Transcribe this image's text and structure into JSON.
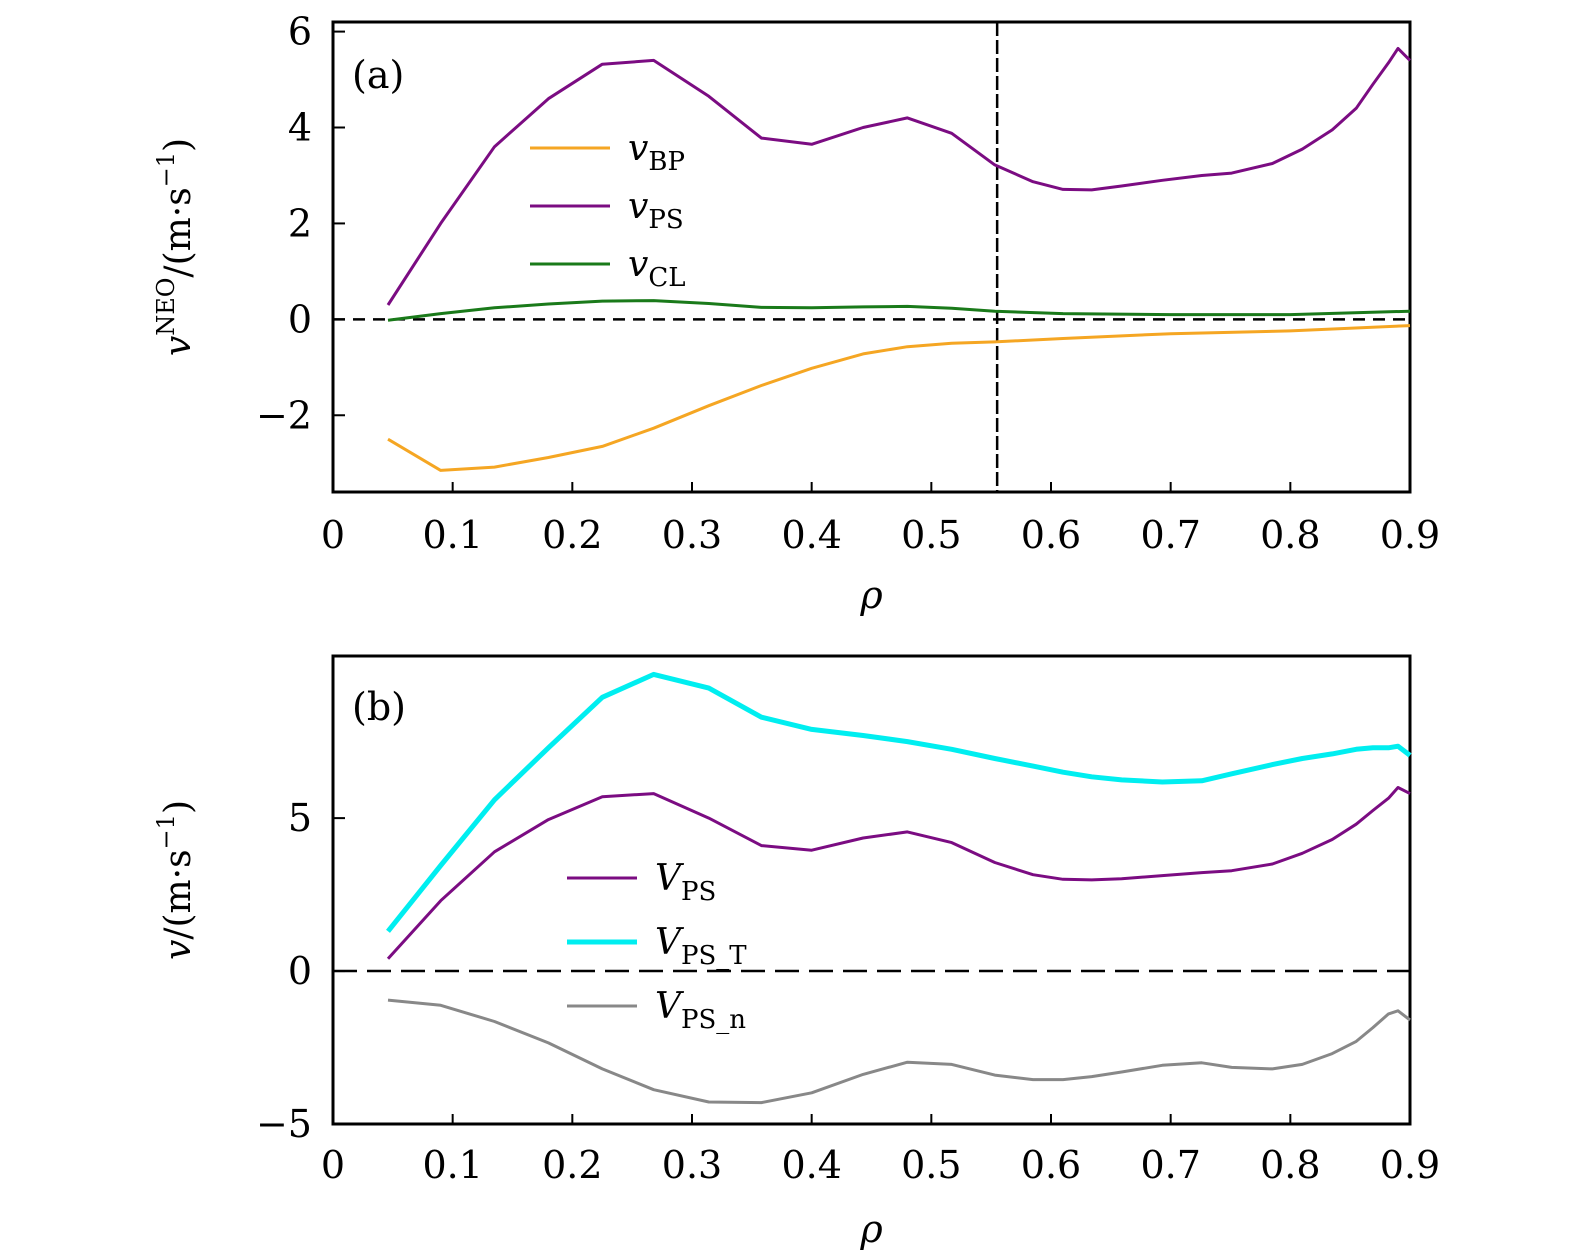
{
  "chart_data": [
    {
      "type": "line",
      "panel_label": "(a)",
      "title": "",
      "xlabel": "ρ",
      "ylabel": "v^NEO/(m·s^-1)",
      "ylabel_parts": {
        "main": "v",
        "sup": "NEO",
        "unit": "/(m·s",
        "unit_sup": "−1",
        "close": ")"
      },
      "xlim": [
        0,
        0.9
      ],
      "ylim": [
        -3.6,
        6.2
      ],
      "xticks": [
        0,
        0.1,
        0.2,
        0.3,
        0.4,
        0.5,
        0.6,
        0.7,
        0.8,
        0.9
      ],
      "xtick_labels": [
        "0",
        "0.1",
        "0.2",
        "0.3",
        "0.4",
        "0.5",
        "0.6",
        "0.7",
        "0.8",
        "0.9"
      ],
      "yticks": [
        -2,
        0,
        2,
        4,
        6
      ],
      "ytick_labels": [
        "−2",
        "0",
        "2",
        "4",
        "6"
      ],
      "grid": false,
      "legend_position": "upper-left-center",
      "reference_lines": [
        {
          "orientation": "horizontal",
          "value": 0,
          "style": "dashed",
          "color": "#000000"
        },
        {
          "orientation": "vertical",
          "value": 0.555,
          "style": "dashed",
          "color": "#000000"
        }
      ],
      "series": [
        {
          "name": "v_BP",
          "label_main": "v",
          "label_sub": "BP",
          "color": "#f5a623",
          "width": 3,
          "x": [
            0.046,
            0.09,
            0.135,
            0.18,
            0.225,
            0.268,
            0.314,
            0.358,
            0.4,
            0.443,
            0.48,
            0.517,
            0.553,
            0.61,
            0.7,
            0.8,
            0.9
          ],
          "y": [
            -2.5,
            -3.15,
            -3.08,
            -2.88,
            -2.65,
            -2.27,
            -1.8,
            -1.38,
            -1.02,
            -0.72,
            -0.57,
            -0.5,
            -0.47,
            -0.4,
            -0.3,
            -0.24,
            -0.13
          ]
        },
        {
          "name": "v_PS",
          "label_main": "v",
          "label_sub": "PS",
          "color": "#7b0c82",
          "width": 3,
          "x": [
            0.046,
            0.09,
            0.135,
            0.18,
            0.225,
            0.268,
            0.314,
            0.358,
            0.4,
            0.443,
            0.48,
            0.517,
            0.553,
            0.585,
            0.61,
            0.634,
            0.659,
            0.693,
            0.726,
            0.751,
            0.785,
            0.81,
            0.835,
            0.855,
            0.869,
            0.882,
            0.89,
            0.9
          ],
          "y": [
            0.3,
            2.0,
            3.6,
            4.6,
            5.32,
            5.4,
            4.65,
            3.78,
            3.65,
            4.0,
            4.2,
            3.88,
            3.22,
            2.87,
            2.71,
            2.7,
            2.78,
            2.9,
            3.0,
            3.05,
            3.25,
            3.55,
            3.95,
            4.4,
            4.9,
            5.35,
            5.65,
            5.4
          ]
        },
        {
          "name": "v_CL",
          "label_main": "v",
          "label_sub": "CL",
          "color": "#1a7a1a",
          "width": 3,
          "x": [
            0.046,
            0.09,
            0.135,
            0.18,
            0.225,
            0.268,
            0.314,
            0.358,
            0.4,
            0.443,
            0.48,
            0.517,
            0.553,
            0.61,
            0.7,
            0.8,
            0.9
          ],
          "y": [
            -0.02,
            0.12,
            0.24,
            0.32,
            0.38,
            0.39,
            0.33,
            0.25,
            0.24,
            0.26,
            0.27,
            0.23,
            0.17,
            0.12,
            0.1,
            0.1,
            0.17
          ]
        }
      ]
    },
    {
      "type": "line",
      "panel_label": "(b)",
      "title": "",
      "xlabel": "ρ",
      "ylabel": "v/(m·s^-1)",
      "ylabel_parts": {
        "main": "v",
        "sup": "",
        "unit": "/(m·s",
        "unit_sup": "−1",
        "close": ")"
      },
      "xlim": [
        0,
        0.9
      ],
      "ylim": [
        -5,
        10.3
      ],
      "xticks": [
        0,
        0.1,
        0.2,
        0.3,
        0.4,
        0.5,
        0.6,
        0.7,
        0.8,
        0.9
      ],
      "xtick_labels": [
        "0",
        "0.1",
        "0.2",
        "0.3",
        "0.4",
        "0.5",
        "0.6",
        "0.7",
        "0.8",
        "0.9"
      ],
      "yticks": [
        -5,
        0,
        5
      ],
      "ytick_labels": [
        "−5",
        "0",
        "5"
      ],
      "grid": false,
      "legend_position": "center-left",
      "reference_lines": [
        {
          "orientation": "horizontal",
          "value": 0,
          "style": "dashed",
          "color": "#000000"
        }
      ],
      "series": [
        {
          "name": "V_PS",
          "label_main": "V",
          "label_sub": "PS",
          "color": "#7b0c82",
          "width": 3,
          "x": [
            0.046,
            0.09,
            0.135,
            0.18,
            0.225,
            0.268,
            0.314,
            0.358,
            0.4,
            0.443,
            0.48,
            0.517,
            0.553,
            0.585,
            0.61,
            0.634,
            0.659,
            0.693,
            0.726,
            0.751,
            0.785,
            0.81,
            0.835,
            0.855,
            0.869,
            0.882,
            0.89,
            0.9
          ],
          "y": [
            0.4,
            2.3,
            3.9,
            4.95,
            5.7,
            5.8,
            5.0,
            4.1,
            3.95,
            4.35,
            4.55,
            4.2,
            3.55,
            3.15,
            3.0,
            2.98,
            3.02,
            3.12,
            3.22,
            3.28,
            3.5,
            3.85,
            4.3,
            4.8,
            5.25,
            5.65,
            6.0,
            5.8
          ]
        },
        {
          "name": "V_PS_T",
          "label_main": "V",
          "label_sub": "PS_T",
          "color": "#00eef0",
          "width": 5,
          "x": [
            0.046,
            0.09,
            0.135,
            0.18,
            0.225,
            0.268,
            0.314,
            0.358,
            0.4,
            0.443,
            0.48,
            0.517,
            0.553,
            0.585,
            0.61,
            0.634,
            0.659,
            0.693,
            0.726,
            0.751,
            0.785,
            0.81,
            0.835,
            0.855,
            0.869,
            0.882,
            0.89,
            0.9
          ],
          "y": [
            1.3,
            3.45,
            5.6,
            7.3,
            8.95,
            9.7,
            9.25,
            8.3,
            7.9,
            7.7,
            7.5,
            7.25,
            6.95,
            6.7,
            6.5,
            6.35,
            6.25,
            6.18,
            6.22,
            6.45,
            6.75,
            6.95,
            7.1,
            7.25,
            7.3,
            7.3,
            7.35,
            7.05
          ]
        },
        {
          "name": "V_PS_n",
          "label_main": "V",
          "label_sub": "PS_n",
          "color": "#888888",
          "width": 3,
          "x": [
            0.046,
            0.09,
            0.135,
            0.18,
            0.225,
            0.268,
            0.314,
            0.358,
            0.4,
            0.443,
            0.48,
            0.517,
            0.553,
            0.585,
            0.61,
            0.634,
            0.659,
            0.693,
            0.726,
            0.751,
            0.785,
            0.81,
            0.835,
            0.855,
            0.869,
            0.882,
            0.89,
            0.9
          ],
          "y": [
            -0.95,
            -1.12,
            -1.65,
            -2.35,
            -3.2,
            -3.88,
            -4.28,
            -4.3,
            -3.98,
            -3.38,
            -2.98,
            -3.05,
            -3.4,
            -3.55,
            -3.55,
            -3.45,
            -3.3,
            -3.08,
            -3.0,
            -3.15,
            -3.2,
            -3.05,
            -2.7,
            -2.3,
            -1.85,
            -1.4,
            -1.3,
            -1.6
          ]
        }
      ]
    }
  ]
}
